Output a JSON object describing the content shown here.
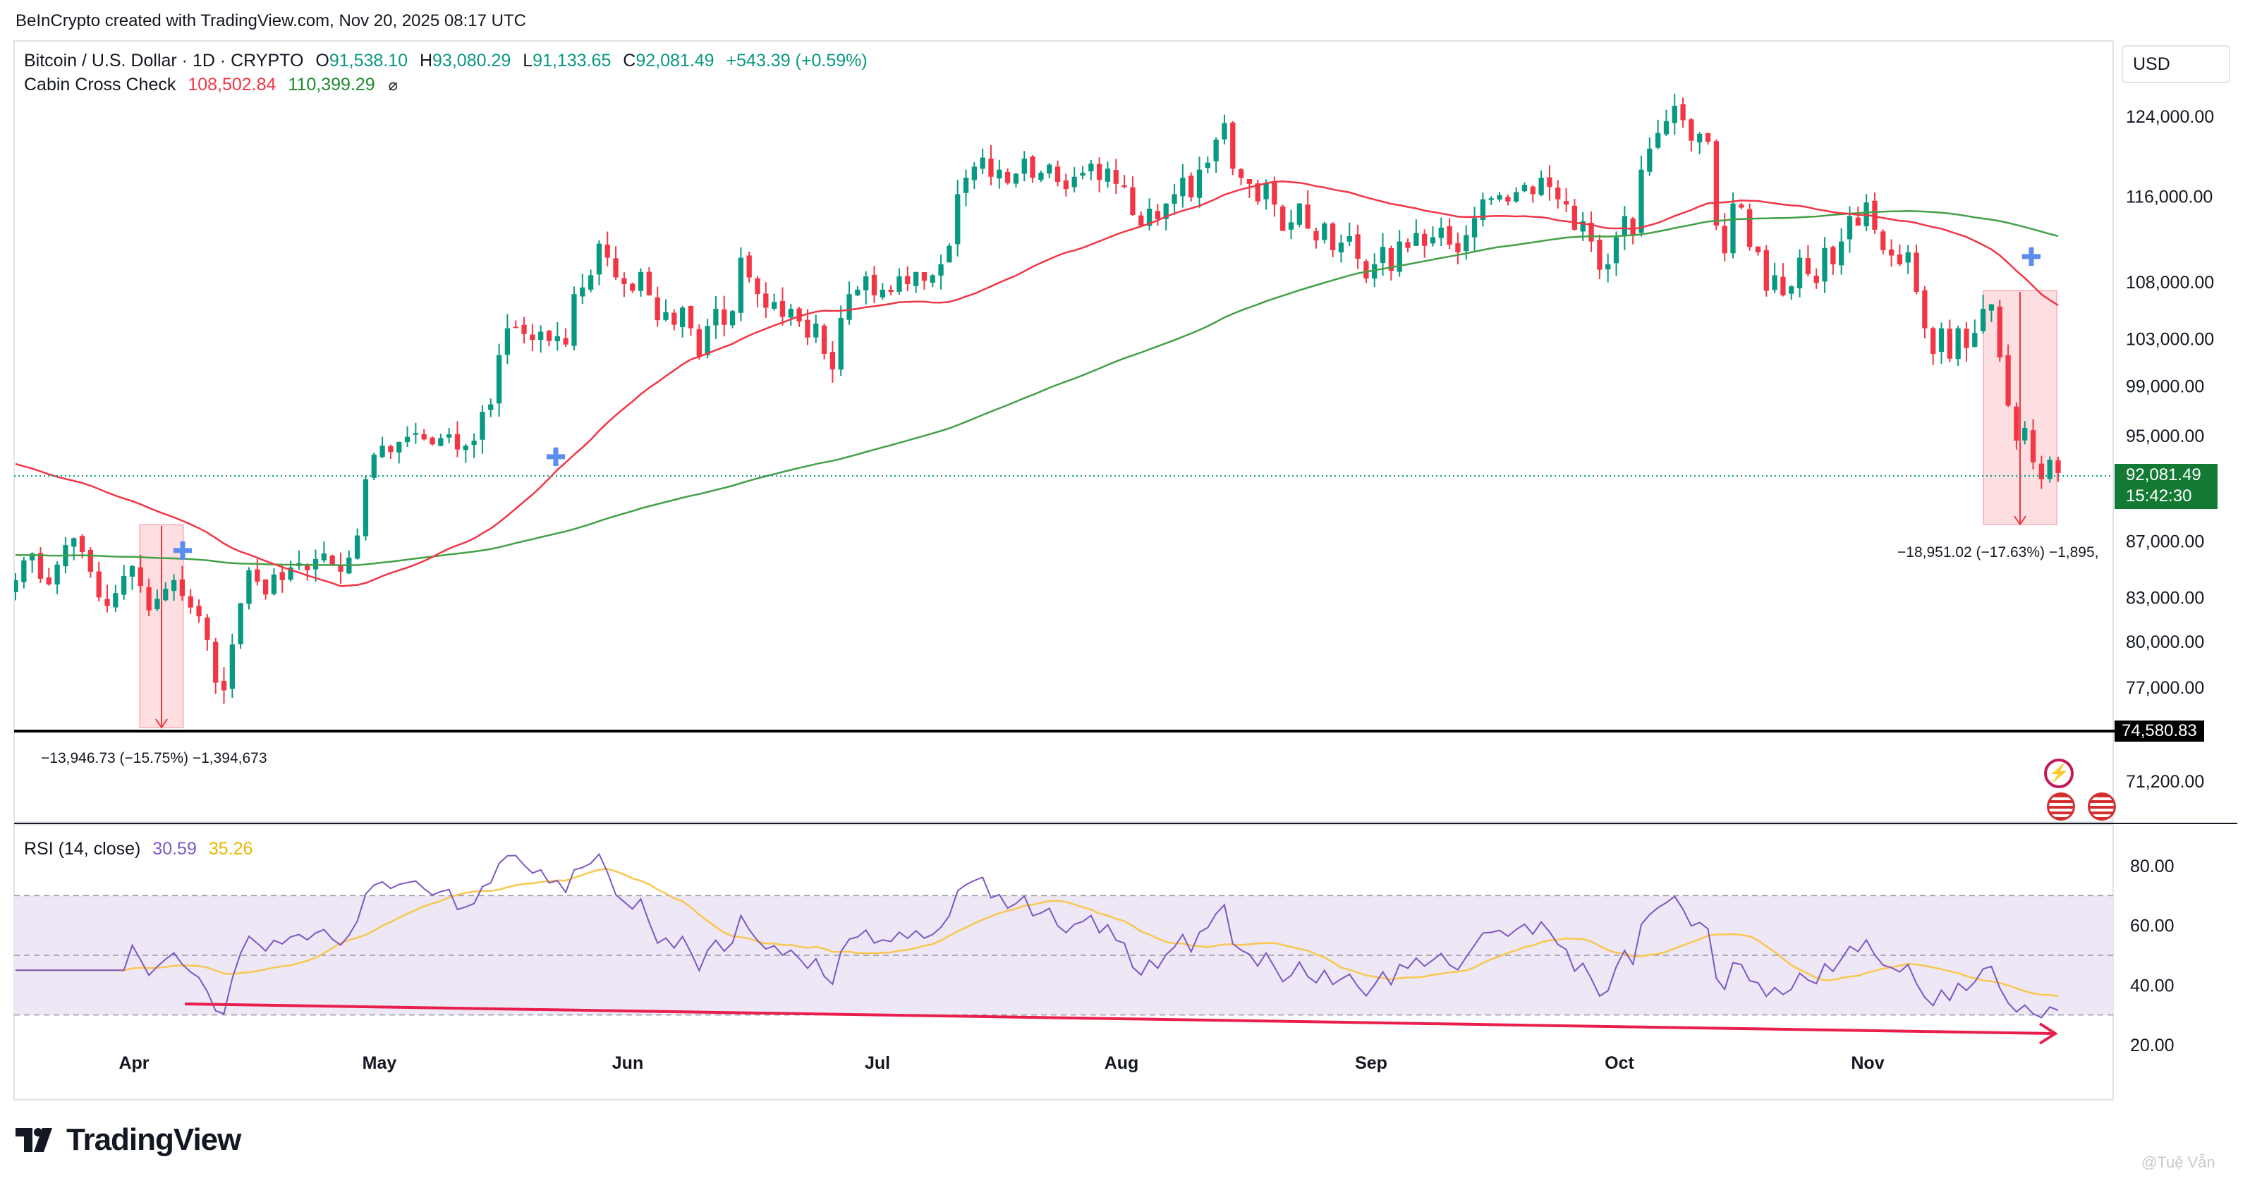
{
  "header": {
    "creator": "BeInCrypto created with TradingView.com, Nov 20, 2025 08:17 UTC",
    "symbol": "Bitcoin / U.S. Dollar · 1D · CRYPTO",
    "o_label": "O",
    "o_val": "91,538.10",
    "h_label": "H",
    "h_val": "93,080.29",
    "l_label": "L",
    "l_val": "91,133.65",
    "c_label": "C",
    "c_val": "92,081.49",
    "change": "+543.39 (+0.59%)",
    "indicator": "Cabin Cross Check",
    "ind_val1": "108,502.84",
    "ind_val2": "110,399.29",
    "ind_icon": "⌀"
  },
  "currency_button": "USD",
  "price_tags": {
    "last": "92,081.49",
    "countdown": "15:42:30",
    "support": "74,580.83"
  },
  "measure": {
    "left": "−13,946.73 (−15.75%) −1,394,673",
    "right": "−18,951.02 (−17.63%) −1,895,"
  },
  "rsi": {
    "label": "RSI (14, close)",
    "val1": "30.59",
    "val2": "35.26"
  },
  "logo": "TradingView",
  "watermark": "@Tuệ Vẫn",
  "colors": {
    "up": "#089981",
    "down": "#f23645",
    "ma_fast": "#f23645",
    "ma_slow": "#43a047",
    "rsi_line": "#7e57c2",
    "rsi_ma": "#fbc02d",
    "rsi_band": "#ede7f6"
  },
  "chart_data": [
    {
      "type": "candlestick",
      "title": "Bitcoin / U.S. Dollar · 1D · CRYPTO",
      "x_ticks": [
        "Apr",
        "May",
        "Jun",
        "Jul",
        "Aug",
        "Sep",
        "Oct",
        "Nov"
      ],
      "y_ticks": [
        124000,
        116000,
        108000,
        103000,
        99000,
        95000,
        87000,
        83000,
        80000,
        77000,
        71200
      ],
      "y_scale": "log",
      "ylim": [
        69000,
        128000
      ],
      "series": [
        {
          "name": "Cabin Cross Check",
          "values": [
            108502.84
          ]
        },
        {
          "name": "Cabin Cross Check",
          "values": [
            110399.29
          ]
        }
      ],
      "close_approx": [
        84200,
        85600,
        86100,
        84300,
        83900,
        85300,
        86700,
        87200,
        86200,
        84800,
        83000,
        82400,
        83300,
        84500,
        85200,
        83800,
        82100,
        82900,
        83600,
        84200,
        83100,
        82300,
        81700,
        80100,
        77300,
        76800,
        79800,
        82600,
        84900,
        84100,
        83200,
        84600,
        84200,
        85100,
        85400,
        84900,
        85700,
        86100,
        85300,
        84800,
        85800,
        87400,
        91600,
        93500,
        94200,
        93700,
        94500,
        94900,
        95200,
        94700,
        94300,
        94800,
        95100,
        93900,
        94200,
        94600,
        96900,
        97500,
        101600,
        103900,
        104000,
        103400,
        102900,
        103600,
        102800,
        103200,
        102500,
        106900,
        107500,
        108600,
        111500,
        110200,
        108400,
        107800,
        107200,
        108900,
        106800,
        104600,
        105300,
        104200,
        105700,
        103900,
        101500,
        104100,
        105600,
        104200,
        105400,
        110200,
        108400,
        106900,
        105700,
        106200,
        104900,
        105600,
        104500,
        103100,
        104300,
        101700,
        100400,
        104800,
        106900,
        107300,
        108500,
        106800,
        107300,
        107100,
        108500,
        107800,
        108900,
        108100,
        108600,
        109600,
        111300,
        116200,
        117800,
        118900,
        119800,
        117900,
        118600,
        117300,
        118200,
        119700,
        117800,
        118300,
        119100,
        117400,
        116700,
        117900,
        118300,
        119200,
        117600,
        118700,
        117200,
        116900,
        114200,
        113200,
        114800,
        113800,
        115300,
        116200,
        117800,
        115900,
        118600,
        119300,
        121600,
        123300,
        118700,
        117800,
        117200,
        115500,
        117300,
        115200,
        112700,
        113500,
        115300,
        112900,
        111800,
        113400,
        110900,
        111600,
        112200,
        110100,
        108300,
        109600,
        111200,
        109000,
        111700,
        111100,
        112500,
        111300,
        112100,
        113000,
        111400,
        110700,
        112300,
        113900,
        115700,
        115800,
        116100,
        115500,
        116400,
        117100,
        116200,
        117800,
        116900,
        115700,
        115200,
        112800,
        113600,
        111700,
        109100,
        109600,
        112100,
        114100,
        112300,
        118600,
        120700,
        122300,
        123500,
        125100,
        123600,
        121500,
        122200,
        121400,
        113200,
        110600,
        115300,
        114900,
        111200,
        110700,
        107200,
        108600,
        106800,
        107600,
        110200,
        108700,
        107900,
        111100,
        109600,
        111700,
        114100,
        113200,
        115400,
        112800,
        110900,
        110400,
        109600,
        110700,
        107100,
        103900,
        101700,
        103900,
        101300,
        103900,
        102200,
        103500,
        105600,
        106000,
        101400,
        97400,
        94600,
        95600,
        92900,
        91600,
        93100,
        92081
      ]
    },
    {
      "type": "line",
      "title": "RSI (14, close)",
      "y_ticks": [
        80,
        60,
        40,
        20
      ],
      "ylim": [
        14,
        86
      ],
      "bands": [
        30,
        50,
        70
      ],
      "series": [
        {
          "name": "RSI",
          "values": [
            30.59
          ]
        },
        {
          "name": "RSI MA",
          "values": [
            35.26
          ]
        }
      ]
    }
  ]
}
